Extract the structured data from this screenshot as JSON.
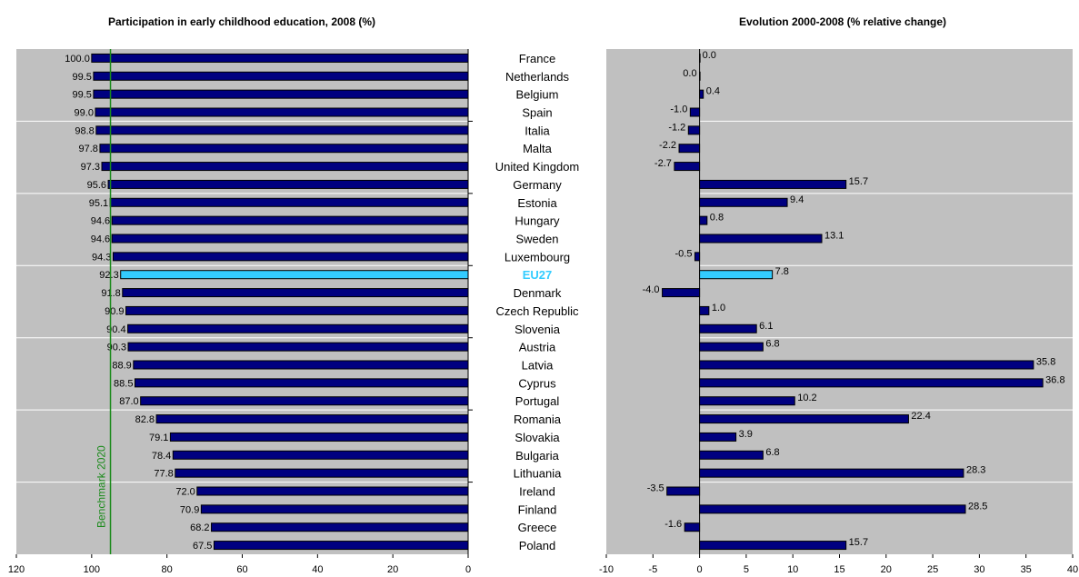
{
  "chart_data": [
    {
      "type": "bar",
      "orientation": "horizontal",
      "title": "Participation in early childhood education, 2008 (%)",
      "categories": [
        "France",
        "Netherlands",
        "Belgium",
        "Spain",
        "Italia",
        "Malta",
        "United Kingdom",
        "Germany",
        "Estonia",
        "Hungary",
        "Sweden",
        "Luxembourg",
        "EU27",
        "Denmark",
        "Czech Republic",
        "Slovenia",
        "Austria",
        "Latvia",
        "Cyprus",
        "Portugal",
        "Romania",
        "Slovakia",
        "Bulgaria",
        "Lithuania",
        "Ireland",
        "Finland",
        "Greece",
        "Poland"
      ],
      "values": [
        100.0,
        99.5,
        99.5,
        99.0,
        98.8,
        97.8,
        97.3,
        95.6,
        95.1,
        94.6,
        94.6,
        94.3,
        92.3,
        91.8,
        90.9,
        90.4,
        90.3,
        88.9,
        88.5,
        87.0,
        82.8,
        79.1,
        78.4,
        77.8,
        72.0,
        70.9,
        68.2,
        67.5
      ],
      "value_labels": [
        "100.0",
        "99.5",
        "99.5",
        "99.0",
        "98.8",
        "97.8",
        "97.3",
        "95.6",
        "95.1",
        "94.6",
        "94.6",
        "94.3",
        "92.3",
        "91.8",
        "90.9",
        "90.4",
        "90.3",
        "88.9",
        "88.5",
        "87.0",
        "82.8",
        "79.1",
        "78.4",
        "77.8",
        "72.0",
        "70.9",
        "68.2",
        "67.5"
      ],
      "xlim": [
        0,
        120
      ],
      "x_reversed": true,
      "xticks": [
        "120",
        "100",
        "80",
        "60",
        "40",
        "20",
        "0"
      ],
      "highlight": "EU27",
      "benchmark": {
        "label": "Benchmark 2020",
        "value": 95
      },
      "grid": true
    },
    {
      "type": "bar",
      "orientation": "horizontal",
      "title": "Evolution 2000-2008 (% relative change)",
      "categories": [
        "France",
        "Netherlands",
        "Belgium",
        "Spain",
        "Italia",
        "Malta",
        "United Kingdom",
        "Germany",
        "Estonia",
        "Hungary",
        "Sweden",
        "Luxembourg",
        "EU27",
        "Denmark",
        "Czech Republic",
        "Slovenia",
        "Austria",
        "Latvia",
        "Cyprus",
        "Portugal",
        "Romania",
        "Slovakia",
        "Bulgaria",
        "Lithuania",
        "Ireland",
        "Finland",
        "Greece",
        "Poland"
      ],
      "values": [
        0.0,
        0.0,
        0.4,
        -1.0,
        -1.2,
        -2.2,
        -2.7,
        15.7,
        9.4,
        0.8,
        13.1,
        -0.5,
        7.8,
        -4.0,
        1.0,
        6.1,
        6.8,
        35.8,
        36.8,
        10.2,
        22.4,
        3.9,
        6.8,
        28.3,
        -3.5,
        28.5,
        -1.6,
        15.7
      ],
      "value_labels": [
        "0.0",
        "0.0",
        "0.4",
        "-1.0",
        "-1.2",
        "-2.2",
        "-2.7",
        "15.7",
        "9.4",
        "0.8",
        "13.1",
        "-0.5",
        "7.8",
        "-4.0",
        "1.0",
        "6.1",
        "6.8",
        "35.8",
        "36.8",
        "10.2",
        "22.4",
        "3.9",
        "6.8",
        "28.3",
        "-3.5",
        "28.5",
        "-1.6",
        "15.7"
      ],
      "xlim": [
        -10,
        40
      ],
      "xticks": [
        "-10",
        "-5",
        "0",
        "5",
        "10",
        "15",
        "20",
        "25",
        "30",
        "35",
        "40"
      ],
      "highlight": "EU27",
      "grid": true
    }
  ],
  "colors": {
    "bar": "#000080",
    "highlight": "#33ccff",
    "plot_background": "#c0c0c0",
    "benchmark_line": "#1a8a1a"
  }
}
